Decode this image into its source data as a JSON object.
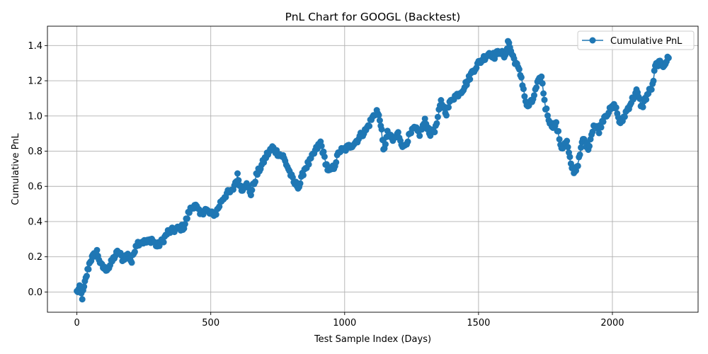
{
  "chart_data": {
    "type": "line",
    "title": "PnL Chart for GOOGL (Backtest)",
    "xlabel": "Test Sample Index (Days)",
    "ylabel": "Cumulative PnL",
    "xlim": [
      -110,
      2320
    ],
    "ylim": [
      -0.115,
      1.51
    ],
    "xticks": [
      0,
      500,
      1000,
      1500,
      2000
    ],
    "yticks": [
      0.0,
      0.2,
      0.4,
      0.6,
      0.8,
      1.0,
      1.2,
      1.4
    ],
    "grid": true,
    "legend_position": "top-right",
    "color": "#1f77b4",
    "marker": "circle",
    "series": [
      {
        "name": "Cumulative PnL",
        "x": [
          0,
          10,
          20,
          30,
          40,
          50,
          60,
          75,
          90,
          105,
          120,
          140,
          155,
          170,
          190,
          205,
          220,
          240,
          260,
          280,
          300,
          320,
          340,
          360,
          380,
          400,
          420,
          440,
          460,
          480,
          500,
          520,
          540,
          560,
          580,
          600,
          615,
          630,
          650,
          670,
          690,
          710,
          730,
          750,
          770,
          790,
          810,
          830,
          850,
          870,
          890,
          910,
          925,
          940,
          960,
          980,
          1000,
          1020,
          1040,
          1060,
          1080,
          1100,
          1120,
          1135,
          1145,
          1160,
          1180,
          1200,
          1220,
          1240,
          1260,
          1280,
          1300,
          1320,
          1340,
          1360,
          1380,
          1400,
          1420,
          1440,
          1460,
          1480,
          1500,
          1520,
          1540,
          1560,
          1580,
          1600,
          1610,
          1625,
          1640,
          1660,
          1680,
          1700,
          1720,
          1735,
          1750,
          1770,
          1790,
          1810,
          1830,
          1845,
          1860,
          1875,
          1890,
          1910,
          1930,
          1950,
          1970,
          1990,
          2010,
          2030,
          2050,
          2070,
          2090,
          2110,
          2130,
          2150,
          2160,
          2170,
          2190,
          2210
        ],
        "y": [
          0.0,
          0.02,
          -0.03,
          0.05,
          0.12,
          0.18,
          0.2,
          0.23,
          0.15,
          0.13,
          0.14,
          0.2,
          0.23,
          0.19,
          0.21,
          0.17,
          0.27,
          0.29,
          0.28,
          0.3,
          0.26,
          0.29,
          0.34,
          0.35,
          0.36,
          0.37,
          0.46,
          0.5,
          0.44,
          0.47,
          0.44,
          0.45,
          0.52,
          0.56,
          0.57,
          0.66,
          0.58,
          0.62,
          0.56,
          0.66,
          0.72,
          0.78,
          0.82,
          0.79,
          0.77,
          0.7,
          0.62,
          0.6,
          0.7,
          0.74,
          0.8,
          0.85,
          0.76,
          0.68,
          0.71,
          0.8,
          0.81,
          0.83,
          0.85,
          0.89,
          0.92,
          0.98,
          1.03,
          0.96,
          0.8,
          0.9,
          0.86,
          0.9,
          0.82,
          0.88,
          0.93,
          0.9,
          0.97,
          0.9,
          0.93,
          1.08,
          1.02,
          1.1,
          1.12,
          1.15,
          1.2,
          1.26,
          1.3,
          1.33,
          1.36,
          1.34,
          1.37,
          1.33,
          1.43,
          1.35,
          1.3,
          1.22,
          1.05,
          1.08,
          1.18,
          1.22,
          1.05,
          0.95,
          0.95,
          0.82,
          0.85,
          0.72,
          0.68,
          0.75,
          0.87,
          0.82,
          0.95,
          0.92,
          1.0,
          1.03,
          1.06,
          0.95,
          1.02,
          1.08,
          1.14,
          1.05,
          1.12,
          1.17,
          1.28,
          1.3,
          1.29,
          1.33
        ]
      }
    ]
  }
}
